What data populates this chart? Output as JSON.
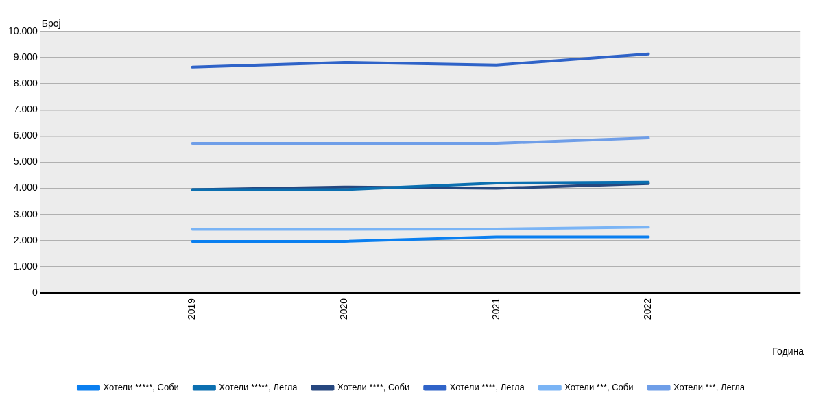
{
  "chart_data": {
    "type": "line",
    "xlabel": "Година",
    "ylabel": "Број",
    "categories": [
      null,
      "2019",
      "2020",
      "2021",
      "2022",
      null
    ],
    "series": [
      {
        "name": "Хотели *****, Соби",
        "color": "#0a7ff0",
        "values": [
          null,
          1970,
          1970,
          2140,
          2140,
          null
        ]
      },
      {
        "name": "Хотели *****, Легла",
        "color": "#0b6fb0",
        "values": [
          null,
          3950,
          3950,
          4200,
          4230,
          null
        ]
      },
      {
        "name": "Хотели ****, Соби",
        "color": "#26477f",
        "values": [
          null,
          3950,
          4050,
          4000,
          4180,
          null
        ]
      },
      {
        "name": "Хотели ****, Легла",
        "color": "#2f63c8",
        "values": [
          null,
          8640,
          8820,
          8720,
          9140,
          null
        ]
      },
      {
        "name": "Хотели ***, Соби",
        "color": "#7ab4f5",
        "values": [
          null,
          2430,
          2430,
          2440,
          2510,
          null
        ]
      },
      {
        "name": "Хотели ***, Легла",
        "color": "#6f9ee8",
        "values": [
          null,
          5720,
          5720,
          5720,
          5930,
          null
        ]
      }
    ],
    "ylim": [
      0,
      10000
    ],
    "yticks": [
      0,
      {
        "value": 1000,
        "label": "1.000"
      },
      {
        "value": 2000,
        "label": "2.000"
      },
      {
        "value": 3000,
        "label": "3.000"
      },
      {
        "value": 4000,
        "label": "4.000"
      },
      {
        "value": 5000,
        "label": "5.000"
      },
      {
        "value": 6000,
        "label": "6.000"
      },
      {
        "value": 7000,
        "label": "7.000"
      },
      {
        "value": 8000,
        "label": "8.000"
      },
      {
        "value": 9000,
        "label": "9.000"
      },
      {
        "value": 10000,
        "label": "10.000"
      }
    ],
    "grid": "y",
    "legend": "bottom",
    "marker": "none",
    "line_style": "solid"
  }
}
